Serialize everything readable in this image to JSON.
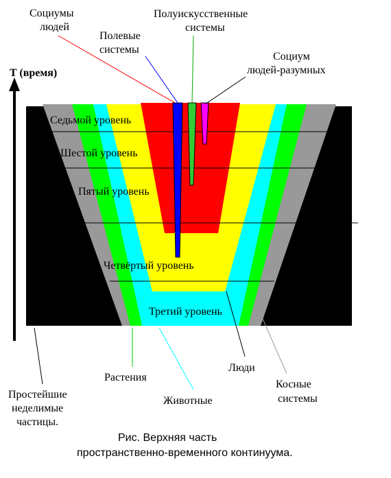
{
  "axis": {
    "label": "T (время)"
  },
  "top_labels": {
    "socium_people": [
      "Социумы",
      "людей"
    ],
    "field_systems": [
      "Полевые",
      "системы"
    ],
    "semi_artificial": [
      "Полуискусственные",
      "системы"
    ],
    "socium_rational": [
      "Социум",
      "людей-разумных"
    ]
  },
  "levels": {
    "seventh": "Седьмой уровень",
    "sixth": "Шестой уровень",
    "fifth": "Пятый уровень",
    "fourth": "Четвёртый уровень",
    "third": "Третий уровень"
  },
  "bottom_labels": {
    "particles": [
      "Простейшие",
      "неделимые",
      "частицы."
    ],
    "plants": "Растения",
    "animals": "Животные",
    "people": "Люди",
    "inert": [
      "Косные",
      "системы"
    ]
  },
  "caption": [
    "Рис. Верхняя часть",
    "пространственно-временного континуума."
  ],
  "colors": {
    "black": "#000000",
    "gray": "#999999",
    "green": "#00ff00",
    "cyan": "#00ffff",
    "yellow": "#ffff00",
    "red": "#ff0000",
    "blue": "#0000ff",
    "magenta": "#ff00ff",
    "semi_green": "#33cc33"
  }
}
